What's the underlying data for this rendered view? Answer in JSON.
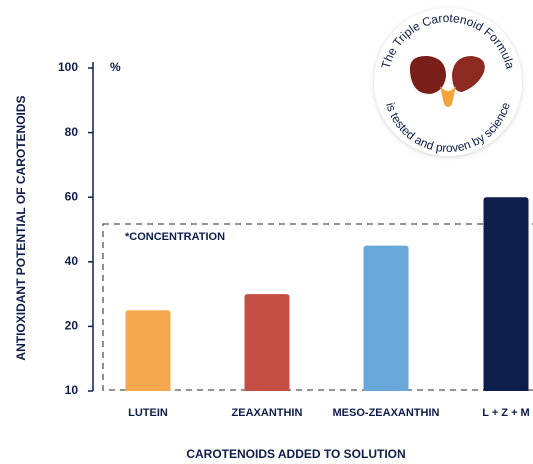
{
  "chart_data": {
    "type": "bar",
    "y_label": "ANTIOXIDANT POTENTIAL OF CAROTENOIDS",
    "x_label": "CAROTENOIDS ADDED TO SOLUTION",
    "y_unit": "%",
    "annotation": "*CONCENTRATION",
    "categories": [
      "LUTEIN",
      "ZEAXANTHIN",
      "MESO-ZEAXANTHIN",
      "L + Z + M"
    ],
    "values": [
      25,
      30,
      45,
      60
    ],
    "colors": [
      "#f6a84f",
      "#c54f45",
      "#69a8d9",
      "#0e1d4b"
    ],
    "ylim": [
      10,
      100
    ],
    "yticks": [
      10,
      20,
      40,
      60,
      80,
      100
    ]
  },
  "badge": {
    "top": "The Triple Carotenoid Formula",
    "bottom": "is tested and proven by science"
  }
}
